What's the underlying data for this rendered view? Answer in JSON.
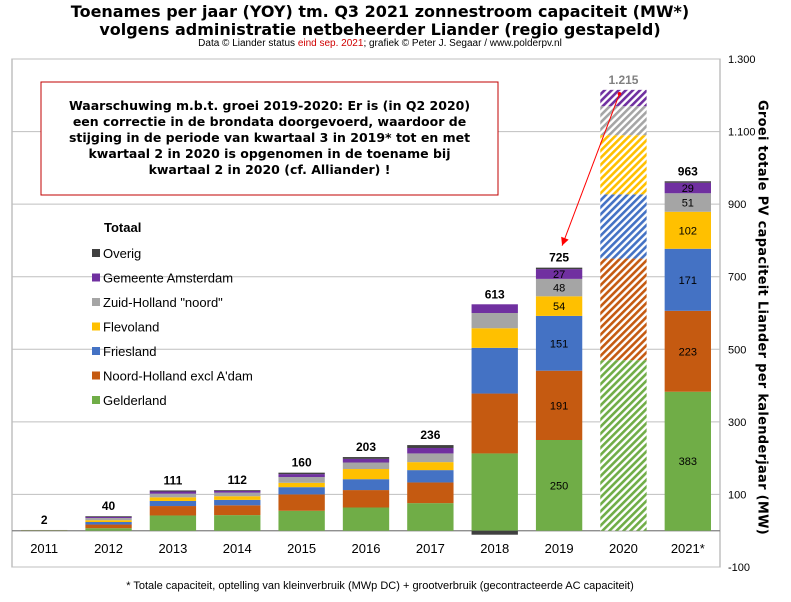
{
  "title_line1": "Toenames per jaar (YOY) tm. Q3 2021 zonnestroom capaciteit (MW*)",
  "title_line2": "volgens administratie netbeheerder Liander (regio gestapeld)",
  "subtitle_pre": "Data © Liander status",
  "subtitle_red": "eind sep. 2021",
  "subtitle_post": "; grafiek © Peter J. Segaar / www.polderpv.nl",
  "footnote": "* Totale capaciteit, optelling van kleinverbruik (MWp DC) + grootverbruik (gecontracteerde AC capaciteit)",
  "warning_lines": [
    "Waarschuwing  m.b.t. groei  2019-2020:  Er is (in Q2 2020)",
    "een correctie in de brondata doorgevoerd,  waardoor de",
    "stijging in de periode van kwartaal  3 in 2019*  tot en met",
    "kwartaal  2 in 2020 is opgenomen in de toename bij",
    "kwartaal  2 in 2020 (cf. Alliander)  !"
  ],
  "colors": {
    "Gelderland": "#70ad47",
    "Noord-Holland excl A'dam": "#c55a11",
    "Friesland": "#4472c4",
    "Flevoland": "#ffc000",
    "Zuid-Holland \"noord\"": "#a5a5a5",
    "Gemeente Amsterdam": "#7030a0",
    "Overig": "#404040"
  },
  "chart_data": {
    "type": "bar",
    "stacked": true,
    "categories": [
      "2011",
      "2012",
      "2013",
      "2014",
      "2015",
      "2016",
      "2017",
      "2018",
      "2019",
      "2020",
      "2021*"
    ],
    "legend_title": "Totaal",
    "legend_order": [
      "Overig",
      "Gemeente Amsterdam",
      "Zuid-Holland \"noord\"",
      "Flevoland",
      "Friesland",
      "Noord-Holland excl A'dam",
      "Gelderland"
    ],
    "series": [
      {
        "name": "Gelderland",
        "values": [
          0.7,
          7,
          42,
          43,
          55,
          64,
          76,
          213,
          250,
          470,
          383
        ]
      },
      {
        "name": "Noord-Holland excl A'dam",
        "values": [
          0.4,
          10,
          26,
          27,
          45,
          48,
          57,
          165,
          191,
          280,
          223
        ]
      },
      {
        "name": "Friesland",
        "values": [
          0.3,
          7,
          14,
          15,
          20,
          30,
          34,
          126,
          151,
          177,
          171
        ]
      },
      {
        "name": "Flevoland",
        "values": [
          0.2,
          5,
          10,
          10,
          12,
          28,
          22,
          54,
          54,
          163,
          102
        ]
      },
      {
        "name": "Zuid-Holland \"noord\"",
        "values": [
          0.2,
          6,
          10,
          10,
          16,
          18,
          24,
          42,
          48,
          80,
          51
        ]
      },
      {
        "name": "Gemeente Amsterdam",
        "values": [
          0.1,
          3,
          6,
          5,
          8,
          10,
          15,
          24,
          27,
          45,
          29
        ]
      },
      {
        "name": "Overig",
        "values": [
          0.1,
          2,
          3,
          2,
          4,
          5,
          8,
          -11,
          4,
          0,
          4
        ]
      }
    ],
    "totals": [
      2,
      40,
      111,
      112,
      160,
      203,
      236,
      613,
      725,
      1215,
      963
    ],
    "hatched_category": "2020",
    "data_labels": {
      "2019": {
        "Gelderland": "250",
        "Noord-Holland excl A'dam": "191",
        "Friesland": "151",
        "Flevoland": "54",
        "Zuid-Holland \"noord\"": "48",
        "Gemeente Amsterdam": "27"
      },
      "2021*": {
        "Gelderland": "383",
        "Noord-Holland excl A'dam": "223",
        "Friesland": "171",
        "Flevoland": "102",
        "Zuid-Holland \"noord\"": "51",
        "Gemeente Amsterdam": "29"
      }
    },
    "ylabel": "Groei totale PV capaciteit Liander per kalenderjaar (MW)",
    "y_axis_side": "right",
    "ylim": [
      -100,
      1300
    ],
    "yticks": [
      -100,
      100,
      300,
      500,
      700,
      900,
      1100,
      1300
    ],
    "ytick_labels": [
      "-100",
      "100",
      "300",
      "500",
      "700",
      "900",
      "1.100",
      "1.300"
    ],
    "grid": true
  }
}
